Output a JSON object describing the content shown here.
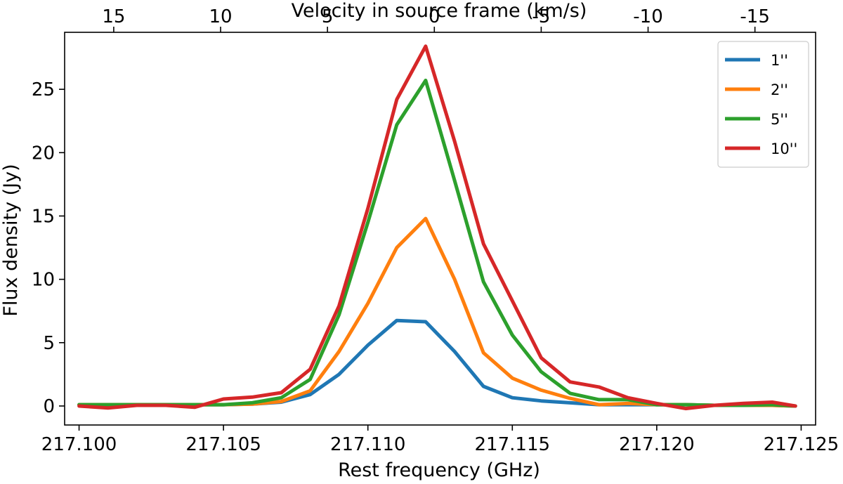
{
  "chart_data": {
    "type": "line",
    "xlabel": "Rest frequency (GHz)",
    "ylabel": "Flux density (Jy)",
    "top_xlabel": "Velocity in source frame (km/s)",
    "xlim": [
      217.0995,
      217.1255
    ],
    "ylim": [
      -1.5,
      29.5
    ],
    "xticks": [
      217.1,
      217.105,
      217.11,
      217.115,
      217.12,
      217.125
    ],
    "xtick_labels": [
      "217.100",
      "217.105",
      "217.110",
      "217.115",
      "217.120",
      "217.125"
    ],
    "yticks": [
      0,
      5,
      10,
      15,
      20,
      25
    ],
    "ytick_labels": [
      "0",
      "5",
      "10",
      "15",
      "20",
      "25"
    ],
    "top_ticks": [
      {
        "freq": 217.1012,
        "label": "15"
      },
      {
        "freq": 217.1049,
        "label": "10"
      },
      {
        "freq": 217.1086,
        "label": "5"
      },
      {
        "freq": 217.1123,
        "label": "0"
      },
      {
        "freq": 217.116,
        "label": "-5"
      },
      {
        "freq": 217.1197,
        "label": "-10"
      },
      {
        "freq": 217.1234,
        "label": "-15"
      }
    ],
    "x": [
      217.1,
      217.101,
      217.102,
      217.103,
      217.104,
      217.105,
      217.106,
      217.107,
      217.108,
      217.109,
      217.11,
      217.111,
      217.112,
      217.113,
      217.114,
      217.115,
      217.116,
      217.117,
      217.118,
      217.119,
      217.12,
      217.121,
      217.122,
      217.123,
      217.124,
      217.1248
    ],
    "series": [
      {
        "name": "1''",
        "color": "#1f77b4",
        "values": [
          0.1,
          0.1,
          0.1,
          0.1,
          0.1,
          0.1,
          0.15,
          0.3,
          0.9,
          2.5,
          4.8,
          6.75,
          6.65,
          4.3,
          1.55,
          0.65,
          0.4,
          0.25,
          0.1,
          0.1,
          0.1,
          0.1,
          0.05,
          0.05,
          0.05,
          0.0
        ]
      },
      {
        "name": "2''",
        "color": "#ff7f0e",
        "values": [
          0.1,
          0.1,
          0.1,
          0.1,
          0.1,
          0.1,
          0.15,
          0.35,
          1.2,
          4.3,
          8.1,
          12.5,
          14.8,
          10.0,
          4.2,
          2.2,
          1.25,
          0.6,
          0.1,
          0.2,
          0.1,
          0.1,
          0.05,
          0.05,
          0.05,
          0.0
        ]
      },
      {
        "name": "5''",
        "color": "#2ca02c",
        "values": [
          0.1,
          0.1,
          0.1,
          0.1,
          0.1,
          0.1,
          0.25,
          0.65,
          2.1,
          7.2,
          14.5,
          22.2,
          25.7,
          17.8,
          9.8,
          5.6,
          2.7,
          1.0,
          0.5,
          0.5,
          0.1,
          0.1,
          0.05,
          0.05,
          0.1,
          0.0
        ]
      },
      {
        "name": "10''",
        "color": "#d62728",
        "values": [
          0.0,
          -0.15,
          0.05,
          0.05,
          -0.1,
          0.55,
          0.7,
          1.05,
          2.9,
          7.9,
          15.6,
          24.2,
          28.4,
          20.9,
          12.8,
          8.3,
          3.8,
          1.9,
          1.5,
          0.65,
          0.2,
          -0.2,
          0.05,
          0.2,
          0.3,
          0.0
        ]
      }
    ],
    "legend_position": "top-right"
  }
}
